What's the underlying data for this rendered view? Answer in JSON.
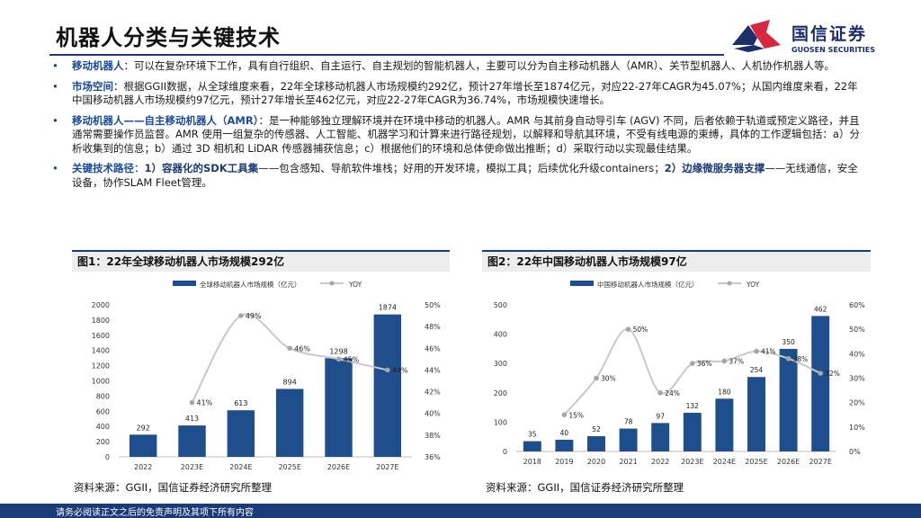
{
  "header": {
    "title": "机器人分类与关键技术"
  },
  "logo": {
    "name": "国信证券",
    "name_en": "GUOSEN SECURITIES"
  },
  "bullets": [
    {
      "lead": "移动机器人",
      "sep": "：",
      "text": "可以在复杂环境下工作，具有自行组织、自主运行、自主规划的智能机器人，主要可以分为自主移动机器人（AMR）、关节型机器人、人机协作机器人等。"
    },
    {
      "lead": "市场空间",
      "sep": "：",
      "text": "根据GGII数据，从全球维度来看，22年全球移动机器人市场规模约292亿，预计27年增长至1874亿元，对应22-27年CAGR为45.07%；从国内维度来看，22年中国移动机器人市场规模约97亿元，预计27年增长至462亿元，对应22-27年CAGR为36.74%，市场规模快速增长。"
    },
    {
      "lead": "移动机器人——自主移动机器人（AMR）",
      "sep": "：",
      "text": "是一种能够独立理解环境并在环境中移动的机器人。AMR 与其前身自动导引车 (AGV) 不同，后者依赖于轨道或预定义路径，并且通常需要操作员监督。AMR 使用一组复杂的传感器、人工智能、机器学习和计算来进行路径规划，以解释和导航其环境，不受有线电源的束缚，具体的工作逻辑包括：a）分析收集到的信息；b）通过 3D 相机和 LiDAR 传感器捕获信息；c）根据他们的环境和总体使命做出推断；d）采取行动以实现最佳结果。"
    },
    {
      "lead": "关键技术路径",
      "sep": "：",
      "hl1": "1）容器化的SDK工具集",
      "mid": "——包含感知、导航软件堆栈；好用的开发环境，模拟工具；后续优化升级containers；",
      "hl2": "2）边缘微服务器支撑",
      "text": "——无线通信，安全设备，协作SLAM Fleet管理。"
    }
  ],
  "figures": [
    {
      "title": "图1：22年全球移动机器人市场规模292亿",
      "source": "资料来源：GGII，国信证券经济研究所整理"
    },
    {
      "title": "图2：22年中国移动机器人市场规模97亿",
      "source": "资料来源：GGII，国信证券经济研究所整理"
    }
  ],
  "chart_data": [
    {
      "type": "bar",
      "categories": [
        "2022",
        "2023E",
        "2024E",
        "2025E",
        "2026E",
        "2027E"
      ],
      "series": [
        {
          "name": "全球移动机器人市场规模（亿元）",
          "values": [
            292,
            413,
            613,
            894,
            1298,
            1874
          ],
          "axis": "left"
        },
        {
          "name": "YOY",
          "type": "line",
          "values": [
            null,
            0.41,
            0.49,
            0.46,
            0.45,
            0.44
          ],
          "axis": "right"
        }
      ],
      "data_labels": {
        "bars": [
          "292",
          "413",
          "613",
          "894",
          "1298",
          "1874"
        ],
        "line": [
          "",
          "41%",
          "49%",
          "46%",
          "45%",
          "44%"
        ]
      },
      "ylim": [
        0,
        2000
      ],
      "yticks": [
        "0",
        "200",
        "400",
        "600",
        "800",
        "1000",
        "1200",
        "1400",
        "1600",
        "1800",
        "2000"
      ],
      "y2lim": [
        0.36,
        0.5
      ],
      "y2ticks": [
        "36%",
        "38%",
        "40%",
        "42%",
        "44%",
        "46%",
        "48%",
        "50%"
      ],
      "legend": "top",
      "colors": {
        "bar": "#1f4e8c",
        "line": "#c9c9c9",
        "marker": "#a6a6a6"
      }
    },
    {
      "type": "bar",
      "categories": [
        "2018",
        "2019",
        "2020",
        "2021",
        "2022",
        "2023E",
        "2024E",
        "2025E",
        "2026E",
        "2027E"
      ],
      "series": [
        {
          "name": "中国移动机器人市场规模（亿元）",
          "values": [
            35,
            40,
            52,
            78,
            97,
            132,
            180,
            254,
            350,
            462
          ],
          "axis": "left"
        },
        {
          "name": "YOY",
          "type": "line",
          "values": [
            null,
            0.15,
            0.3,
            0.5,
            0.24,
            0.36,
            0.37,
            0.41,
            0.38,
            0.32
          ],
          "axis": "right"
        }
      ],
      "data_labels": {
        "bars": [
          "35",
          "40",
          "52",
          "78",
          "97",
          "132",
          "180",
          "254",
          "350",
          "462"
        ],
        "line": [
          "",
          "15%",
          "30%",
          "50%",
          "24%",
          "36%",
          "37%",
          "41%",
          "38%",
          "32%"
        ]
      },
      "ylim": [
        0,
        500
      ],
      "yticks": [
        "0",
        "100",
        "200",
        "300",
        "400",
        "500"
      ],
      "y2lim": [
        0,
        0.6
      ],
      "y2ticks": [
        "0%",
        "10%",
        "20%",
        "30%",
        "40%",
        "50%",
        "60%"
      ],
      "legend": "top",
      "colors": {
        "bar": "#1f4e8c",
        "line": "#c9c9c9",
        "marker": "#a6a6a6"
      }
    }
  ],
  "footer": {
    "disclaimer": "请务必阅读正文之后的免责声明及其项下所有内容"
  }
}
